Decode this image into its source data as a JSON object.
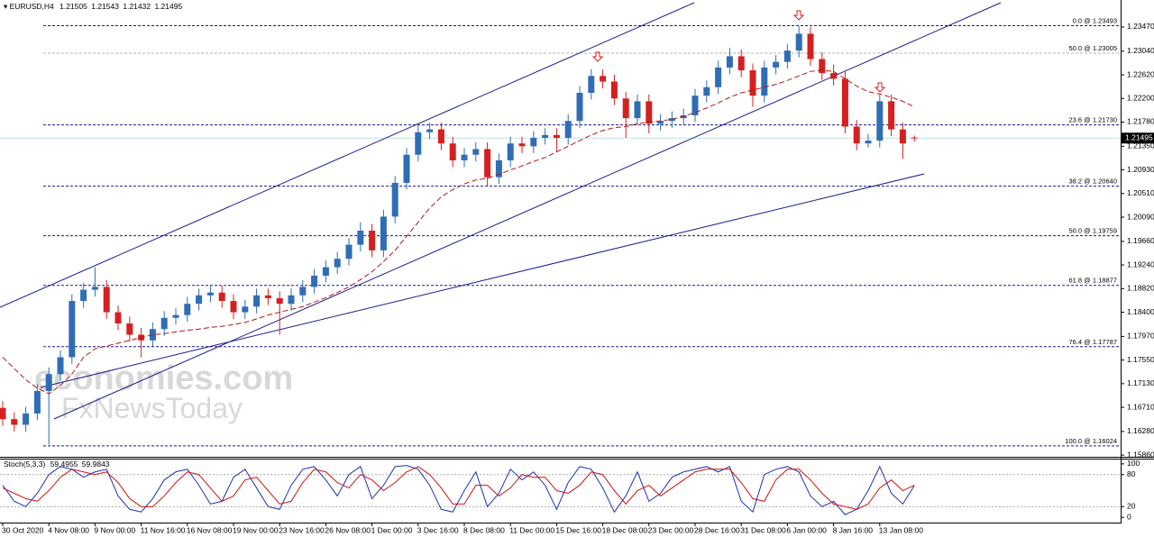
{
  "chart_data": [
    {
      "type": "candlestick",
      "title": "EURUSD,H4",
      "ylim": [
        1.1583,
        1.2395
      ],
      "yticks": [
        {
          "value": 1.2347,
          "label": "1.23470"
        },
        {
          "value": 1.2304,
          "label": "1.23040"
        },
        {
          "value": 1.2262,
          "label": "1.22620"
        },
        {
          "value": 1.222,
          "label": "1.22200"
        },
        {
          "value": 1.2178,
          "label": "1.21780"
        },
        {
          "value": 1.2135,
          "label": "1.21350"
        },
        {
          "value": 1.2093,
          "label": "1.20930"
        },
        {
          "value": 1.2051,
          "label": "1.20510"
        },
        {
          "value": 1.2009,
          "label": "1.20090"
        },
        {
          "value": 1.1966,
          "label": "1.19660"
        },
        {
          "value": 1.1924,
          "label": "1.19240"
        },
        {
          "value": 1.1882,
          "label": "1.18820"
        },
        {
          "value": 1.184,
          "label": "1.18400"
        },
        {
          "value": 1.1797,
          "label": "1.17970"
        },
        {
          "value": 1.1755,
          "label": "1.17550"
        },
        {
          "value": 1.1713,
          "label": "1.17130"
        },
        {
          "value": 1.1671,
          "label": "1.16710"
        },
        {
          "value": 1.1628,
          "label": "1.16280"
        },
        {
          "value": 1.1586,
          "label": "1.15860"
        }
      ],
      "xticks": [
        {
          "value": 0,
          "label": "30 Oct 2020"
        },
        {
          "value": 4,
          "label": "4 Nov 08:00"
        },
        {
          "value": 8,
          "label": "9 Nov 00:00"
        },
        {
          "value": 12,
          "label": "11 Nov 16:00"
        },
        {
          "value": 16,
          "label": "16 Nov 08:00"
        },
        {
          "value": 20,
          "label": "19 Nov 00:00"
        },
        {
          "value": 24,
          "label": "23 Nov 16:00"
        },
        {
          "value": 28,
          "label": "26 Nov 08:00"
        },
        {
          "value": 32,
          "label": "1 Dec 00:00"
        },
        {
          "value": 36,
          "label": "3 Dec 16:00"
        },
        {
          "value": 40,
          "label": "8 Dec 08:00"
        },
        {
          "value": 44,
          "label": "11 Dec 00:00"
        },
        {
          "value": 48,
          "label": "15 Dec 16:00"
        },
        {
          "value": 52,
          "label": "18 Dec 08:00"
        },
        {
          "value": 56,
          "label": "23 Dec 00:00"
        },
        {
          "value": 60,
          "label": "28 Dec 16:00"
        },
        {
          "value": 64,
          "label": "31 Dec 08:00"
        },
        {
          "value": 68,
          "label": "6 Jan 00:00"
        },
        {
          "value": 72,
          "label": "8 Jan 16:00"
        },
        {
          "value": 76,
          "label": "13 Jan 08:00"
        }
      ],
      "up_color": "#2f6db5",
      "down_color": "#d42020",
      "open": [
        1.167,
        1.165,
        1.164,
        1.166,
        1.17,
        1.173,
        1.176,
        1.186,
        1.188,
        1.1885,
        1.184,
        1.182,
        1.18,
        1.179,
        1.181,
        1.183,
        1.1835,
        1.1855,
        1.187,
        1.1875,
        1.186,
        1.184,
        1.185,
        1.187,
        1.1865,
        1.1855,
        1.187,
        1.1885,
        1.1905,
        1.192,
        1.1935,
        1.196,
        1.1985,
        1.195,
        1.201,
        1.207,
        1.212,
        1.216,
        1.2165,
        1.214,
        1.211,
        1.212,
        1.213,
        1.208,
        1.211,
        1.214,
        1.2135,
        1.215,
        1.2155,
        1.215,
        1.218,
        1.223,
        1.226,
        1.225,
        1.222,
        1.2185,
        1.2215,
        1.2175,
        1.218,
        1.2185,
        1.219,
        1.2225,
        1.224,
        1.2275,
        1.2295,
        1.227,
        1.2225,
        1.2275,
        1.2285,
        1.2305,
        1.2335,
        1.229,
        1.2265,
        1.2255,
        1.217,
        1.214,
        1.2145,
        1.2215,
        1.2165,
        1.21505
      ],
      "high": [
        1.1682,
        1.1662,
        1.1672,
        1.1712,
        1.1742,
        1.1772,
        1.1872,
        1.1892,
        1.192,
        1.1897,
        1.1852,
        1.1832,
        1.1812,
        1.1822,
        1.1842,
        1.1847,
        1.1867,
        1.1882,
        1.1887,
        1.1887,
        1.1872,
        1.1862,
        1.1882,
        1.1882,
        1.1877,
        1.1882,
        1.1897,
        1.1917,
        1.1932,
        1.1947,
        1.1972,
        1.2,
        1.1997,
        1.2022,
        1.2082,
        1.2132,
        1.2172,
        1.2177,
        1.2177,
        1.2152,
        1.2132,
        1.2142,
        1.2142,
        1.2122,
        1.2152,
        1.2152,
        1.2162,
        1.2167,
        1.2167,
        1.2192,
        1.2242,
        1.2272,
        1.2272,
        1.2262,
        1.2232,
        1.2227,
        1.2227,
        1.2192,
        1.2197,
        1.2202,
        1.2237,
        1.2252,
        1.2287,
        1.231,
        1.2307,
        1.2282,
        1.2287,
        1.2297,
        1.2317,
        1.2349,
        1.2347,
        1.2302,
        1.228,
        1.2267,
        1.2182,
        1.2157,
        1.2227,
        1.2227,
        1.2177,
        1.21543
      ],
      "low": [
        1.1638,
        1.1628,
        1.1628,
        1.1648,
        1.1605,
        1.1718,
        1.1748,
        1.1848,
        1.1868,
        1.1828,
        1.1808,
        1.1788,
        1.176,
        1.1778,
        1.1798,
        1.1818,
        1.1823,
        1.1843,
        1.1858,
        1.1848,
        1.1828,
        1.1828,
        1.1838,
        1.1853,
        1.18,
        1.1843,
        1.1858,
        1.1873,
        1.1893,
        1.1908,
        1.1923,
        1.1948,
        1.1938,
        1.1938,
        1.1998,
        1.2058,
        1.2108,
        1.2148,
        1.2128,
        1.2098,
        1.2098,
        1.2108,
        1.2064,
        1.2068,
        1.2098,
        1.2123,
        1.2123,
        1.2138,
        1.2125,
        1.2138,
        1.2168,
        1.2218,
        1.2238,
        1.2208,
        1.215,
        1.2173,
        1.2158,
        1.2163,
        1.2168,
        1.2173,
        1.2178,
        1.2213,
        1.2228,
        1.2263,
        1.2258,
        1.2205,
        1.2213,
        1.2263,
        1.2273,
        1.2293,
        1.2278,
        1.2253,
        1.2243,
        1.2158,
        1.2128,
        1.2133,
        1.2133,
        1.2153,
        1.2113,
        1.21432
      ],
      "close": [
        1.165,
        1.164,
        1.166,
        1.17,
        1.173,
        1.176,
        1.186,
        1.188,
        1.1885,
        1.184,
        1.182,
        1.18,
        1.179,
        1.181,
        1.183,
        1.1835,
        1.1855,
        1.187,
        1.1875,
        1.186,
        1.184,
        1.185,
        1.187,
        1.1865,
        1.1855,
        1.187,
        1.1885,
        1.1905,
        1.192,
        1.1935,
        1.196,
        1.1985,
        1.195,
        1.201,
        1.207,
        1.212,
        1.216,
        1.2165,
        1.214,
        1.211,
        1.212,
        1.213,
        1.208,
        1.211,
        1.214,
        1.2135,
        1.215,
        1.2155,
        1.215,
        1.218,
        1.223,
        1.226,
        1.225,
        1.222,
        1.2185,
        1.2215,
        1.2175,
        1.218,
        1.2185,
        1.219,
        1.2225,
        1.224,
        1.2275,
        1.2295,
        1.227,
        1.2225,
        1.2275,
        1.2285,
        1.2305,
        1.2335,
        1.229,
        1.2265,
        1.2255,
        1.217,
        1.214,
        1.2145,
        1.2215,
        1.2165,
        1.214,
        1.21495
      ],
      "ma": {
        "color": "#b01818",
        "values": [
          1.176,
          1.174,
          1.172,
          1.1705,
          1.1695,
          1.171,
          1.173,
          1.176,
          1.1775,
          1.178,
          1.1785,
          1.179,
          1.1795,
          1.18,
          1.1802,
          1.1805,
          1.1808,
          1.181,
          1.1813,
          1.1815,
          1.1818,
          1.1822,
          1.1828,
          1.1835,
          1.184,
          1.1845,
          1.185,
          1.1858,
          1.1866,
          1.1875,
          1.1885,
          1.1898,
          1.1912,
          1.193,
          1.195,
          1.1975,
          1.2,
          1.2025,
          1.2045,
          1.2058,
          1.2068,
          1.2075,
          1.2078,
          1.2085,
          1.2093,
          1.21,
          1.2108,
          1.2115,
          1.2125,
          1.2135,
          1.2145,
          1.2155,
          1.2163,
          1.2168,
          1.217,
          1.2175,
          1.2178,
          1.218,
          1.2183,
          1.2188,
          1.2195,
          1.2203,
          1.2212,
          1.2222,
          1.223,
          1.2235,
          1.224,
          1.2245,
          1.2252,
          1.226,
          1.2268,
          1.227,
          1.2268,
          1.2255,
          1.2242,
          1.2232,
          1.2228,
          1.2222,
          1.2215,
          1.2205
        ]
      },
      "fib_levels": [
        {
          "value": 1.23493,
          "label": "0.0 @ 1.23493",
          "color": "#1a1a8c"
        },
        {
          "value": 1.23005,
          "label": "50.0 @ 1.23005",
          "color": "#b0b0b0"
        },
        {
          "value": 1.2173,
          "label": "23.6 @ 1.21730",
          "color": "#1a1a8c"
        },
        {
          "value": 1.2064,
          "label": "38.2 @ 1.20640",
          "color": "#1a1a8c"
        },
        {
          "value": 1.19759,
          "label": "50.0 @ 1.19759",
          "color": "#1a1a8c"
        },
        {
          "value": 1.18877,
          "label": "61.8 @ 1.18877",
          "color": "#1a1a8c"
        },
        {
          "value": 1.17787,
          "label": "76.4 @ 1.17787",
          "color": "#1a1a8c"
        },
        {
          "value": 1.16024,
          "label": "100.0 @ 1.16024",
          "color": "#1a1a8c"
        }
      ],
      "watermark": [
        "economies.com",
        "FxNewsToday"
      ]
    },
    {
      "type": "line",
      "title": "Stoch(5,3,3)",
      "ylim": [
        -9.8,
        108.2
      ],
      "yticks": [
        100,
        80,
        20,
        0
      ],
      "grid_levels": [
        80,
        20
      ],
      "series": [
        {
          "color": "#1f2fb0",
          "values": [
            60,
            30,
            20,
            45,
            80,
            95,
            90,
            75,
            85,
            90,
            40,
            15,
            10,
            35,
            70,
            85,
            90,
            60,
            25,
            30,
            75,
            90,
            55,
            20,
            15,
            60,
            90,
            95,
            70,
            40,
            80,
            95,
            35,
            60,
            95,
            97,
            90,
            60,
            15,
            10,
            50,
            85,
            20,
            45,
            90,
            70,
            85,
            60,
            15,
            65,
            95,
            90,
            55,
            10,
            40,
            85,
            30,
            45,
            75,
            85,
            90,
            95,
            85,
            95,
            30,
            10,
            80,
            90,
            95,
            85,
            40,
            20,
            30,
            5,
            15,
            50,
            95,
            45,
            25,
            59.4955
          ]
        },
        {
          "color": "#d01010",
          "values": [
            55,
            45,
            35,
            30,
            50,
            75,
            90,
            85,
            80,
            85,
            65,
            35,
            20,
            20,
            40,
            65,
            85,
            80,
            55,
            30,
            40,
            70,
            75,
            50,
            25,
            30,
            65,
            90,
            85,
            65,
            55,
            80,
            70,
            50,
            65,
            85,
            95,
            80,
            55,
            25,
            25,
            60,
            60,
            40,
            55,
            80,
            75,
            75,
            50,
            45,
            60,
            85,
            80,
            50,
            25,
            50,
            60,
            40,
            55,
            70,
            85,
            90,
            90,
            90,
            65,
            35,
            30,
            70,
            90,
            90,
            70,
            45,
            25,
            20,
            15,
            25,
            55,
            70,
            50,
            59.9843
          ]
        }
      ]
    }
  ]
}
